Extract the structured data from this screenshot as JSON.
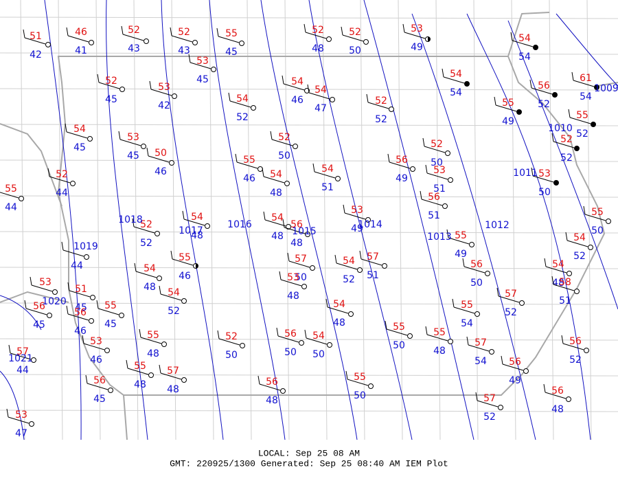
{
  "stations": [
    {
      "temperature": 51,
      "dewpoint": 42
    },
    {
      "temperature": 46,
      "dewpoint": 41
    },
    {
      "temperature": 52,
      "dewpoint": 43
    },
    {
      "temperature": 52,
      "dewpoint": 43
    },
    {
      "temperature": 55,
      "dewpoint": 45
    },
    {
      "temperature": 52,
      "dewpoint": 48
    },
    {
      "temperature": 52,
      "dewpoint": 50
    },
    {
      "temperature": 53,
      "dewpoint": 49
    },
    {
      "temperature": 54,
      "dewpoint": 54
    },
    {
      "temperature": 53,
      "dewpoint": 45
    },
    {
      "temperature": 52,
      "dewpoint": 45
    },
    {
      "temperature": 53,
      "dewpoint": 42
    },
    {
      "temperature": 54,
      "dewpoint": 46
    },
    {
      "temperature": 54,
      "dewpoint": 47
    },
    {
      "temperature": 54,
      "dewpoint": 52
    },
    {
      "temperature": 52,
      "dewpoint": 52
    },
    {
      "temperature": 54,
      "dewpoint": 54
    },
    {
      "temperature": 56,
      "dewpoint": 52
    },
    {
      "temperature": 61,
      "dewpoint": 54
    },
    {
      "temperature": 55,
      "dewpoint": 49
    },
    {
      "temperature": 55,
      "dewpoint": 52
    },
    {
      "temperature": 52,
      "dewpoint": 52
    },
    {
      "temperature": 54,
      "dewpoint": 45
    },
    {
      "temperature": 53,
      "dewpoint": 45
    },
    {
      "temperature": 50,
      "dewpoint": 46
    },
    {
      "temperature": 52,
      "dewpoint": 50
    },
    {
      "temperature": 55,
      "dewpoint": 46
    },
    {
      "temperature": 54,
      "dewpoint": 48
    },
    {
      "temperature": 54,
      "dewpoint": 51
    },
    {
      "temperature": 56,
      "dewpoint": 49
    },
    {
      "temperature": 52,
      "dewpoint": 50
    },
    {
      "temperature": 53,
      "dewpoint": 51
    },
    {
      "temperature": 53,
      "dewpoint": 50
    },
    {
      "temperature": 52,
      "dewpoint": 44
    },
    {
      "temperature": 55,
      "dewpoint": 44
    },
    {
      "temperature": 56,
      "dewpoint": 51
    },
    {
      "temperature": 53,
      "dewpoint": 49
    },
    {
      "temperature": 54,
      "dewpoint": 48
    },
    {
      "temperature": 52,
      "dewpoint": 52
    },
    {
      "temperature": 54,
      "dewpoint": 48
    },
    {
      "temperature": 56,
      "dewpoint": 48
    },
    {
      "temperature": 55,
      "dewpoint": 49
    },
    {
      "temperature": 55,
      "dewpoint": 50
    },
    {
      "temperature": 54,
      "dewpoint": 52
    },
    {
      "dewpoint": 44
    },
    {
      "temperature": 55,
      "dewpoint": 46
    },
    {
      "temperature": 54,
      "dewpoint": 48
    },
    {
      "temperature": 57,
      "dewpoint": 50
    },
    {
      "temperature": 53,
      "dewpoint": 48
    },
    {
      "temperature": 54,
      "dewpoint": 52
    },
    {
      "temperature": 57,
      "dewpoint": 51
    },
    {
      "temperature": 56,
      "dewpoint": 50
    },
    {
      "temperature": 54,
      "dewpoint": 48
    },
    {
      "temperature": 58,
      "dewpoint": 51
    },
    {
      "temperature": 53
    },
    {
      "temperature": 56,
      "dewpoint": 45
    },
    {
      "temperature": 51,
      "dewpoint": 45
    },
    {
      "temperature": 55,
      "dewpoint": 45
    },
    {
      "temperature": 56,
      "dewpoint": 46
    },
    {
      "temperature": 54,
      "dewpoint": 52
    },
    {
      "temperature": 54,
      "dewpoint": 48
    },
    {
      "temperature": 55,
      "dewpoint": 54
    },
    {
      "temperature": 57,
      "dewpoint": 52
    },
    {
      "temperature": 53,
      "dewpoint": 46
    },
    {
      "temperature": 55,
      "dewpoint": 48
    },
    {
      "temperature": 52,
      "dewpoint": 50
    },
    {
      "temperature": 56,
      "dewpoint": 50
    },
    {
      "temperature": 54,
      "dewpoint": 50
    },
    {
      "temperature": 55,
      "dewpoint": 50
    },
    {
      "temperature": 55,
      "dewpoint": 48
    },
    {
      "temperature": 57,
      "dewpoint": 54
    },
    {
      "temperature": 56,
      "dewpoint": 52
    },
    {
      "temperature": 57,
      "dewpoint": 44
    },
    {
      "temperature": 55,
      "dewpoint": 48
    },
    {
      "temperature": 57,
      "dewpoint": 48
    },
    {
      "temperature": 56,
      "dewpoint": 45
    },
    {
      "temperature": 56,
      "dewpoint": 48
    },
    {
      "temperature": 55,
      "dewpoint": 50
    },
    {
      "temperature": 56,
      "dewpoint": 49
    },
    {
      "temperature": 56,
      "dewpoint": 48
    },
    {
      "temperature": 57,
      "dewpoint": 52
    },
    {
      "temperature": 53,
      "dewpoint": 47
    }
  ],
  "isobars": [
    "1009",
    "1010",
    "1011",
    "1012",
    "1013",
    "1014",
    "1015",
    "1016",
    "1017",
    "1018",
    "1019",
    "1020",
    "1021"
  ],
  "footer": {
    "local": "LOCAL: Sep 25 08 AM",
    "gmt": "GMT: 220925/1300 Generated: Sep 25 08:40 AM IEM Plot"
  }
}
